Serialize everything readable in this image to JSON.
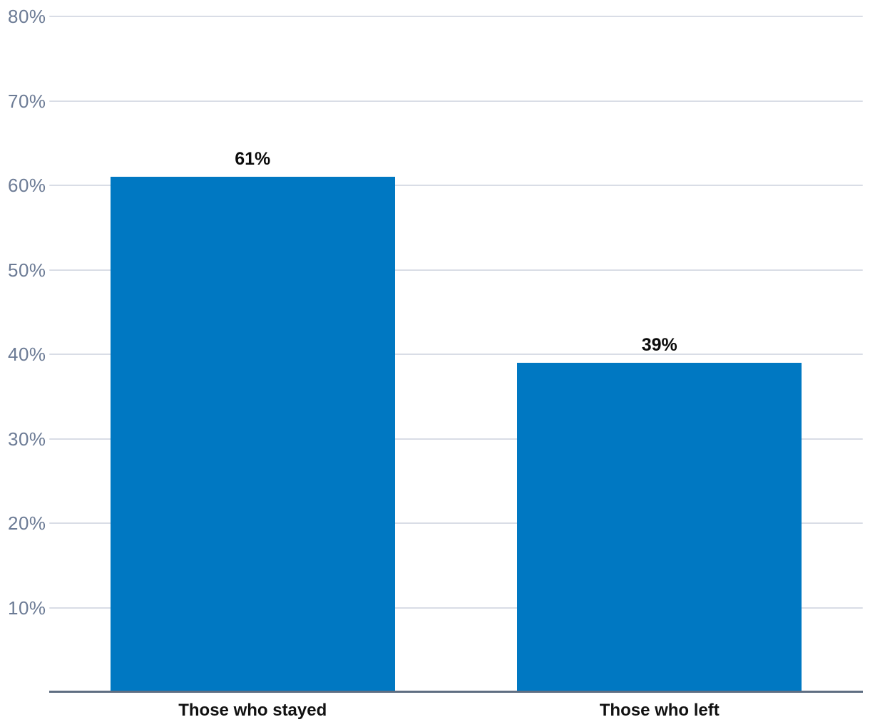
{
  "chart_data": {
    "type": "bar",
    "categories": [
      "Those who stayed",
      "Those who left"
    ],
    "values": [
      61,
      39
    ],
    "value_labels": [
      "61%",
      "39%"
    ],
    "title": "",
    "xlabel": "",
    "ylabel": "",
    "ylim": [
      0,
      80
    ],
    "yticks": [
      10,
      20,
      30,
      40,
      50,
      60,
      70,
      80
    ],
    "ytick_suffix": "%",
    "grid": true,
    "legend": false,
    "colors": {
      "bar": "#0078C2",
      "gridline": "#D9DDE6",
      "axis_line": "#5F6E82",
      "tick_label": "#6C7B95",
      "value_label": "#0B0B0B",
      "category_label": "#111111",
      "background": "#FFFFFF"
    }
  }
}
